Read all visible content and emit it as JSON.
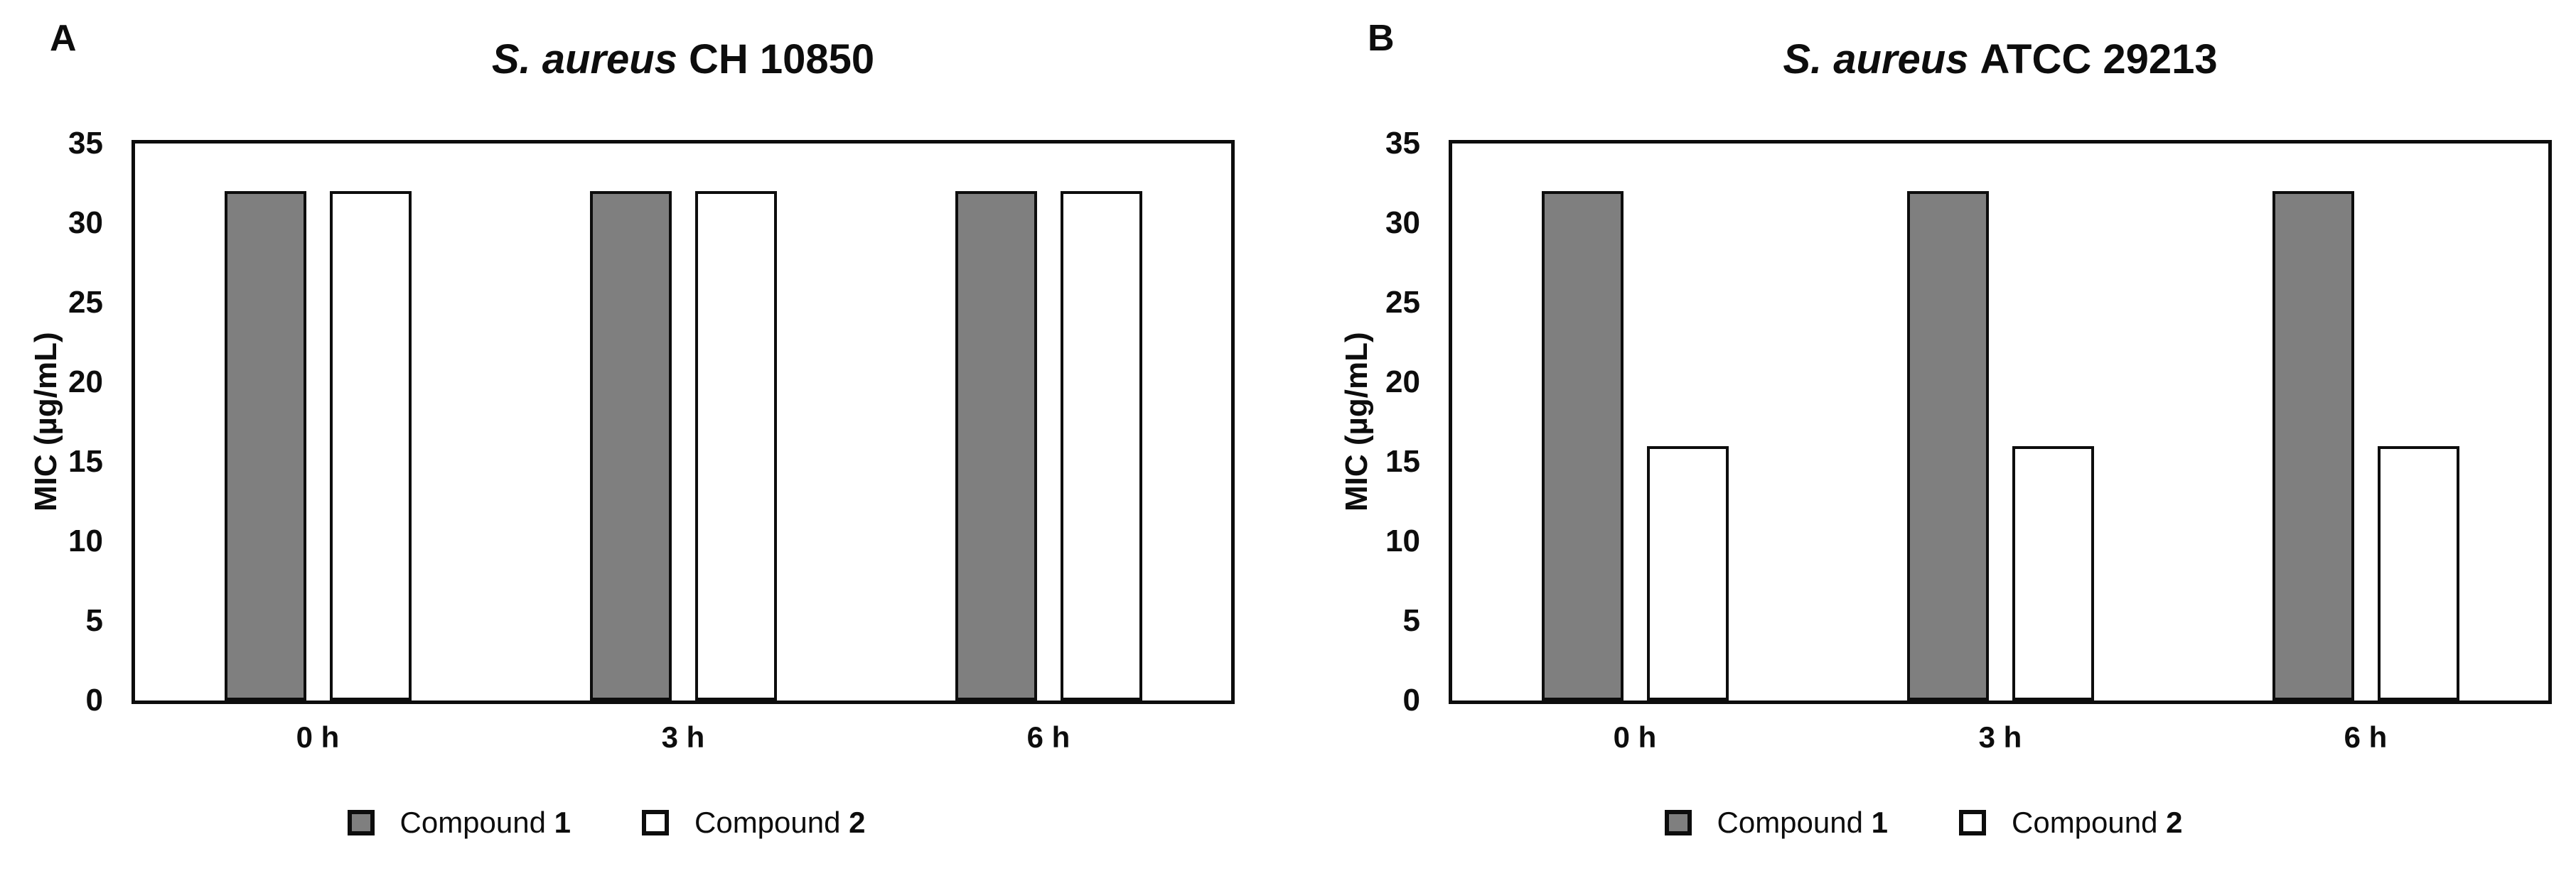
{
  "figure": {
    "background": "#ffffff",
    "axis_color": "#0d0d0d",
    "panel_count": 2
  },
  "chart_data": [
    {
      "type": "bar",
      "panel_letter": "A",
      "title": "S. aureus CH 10850",
      "title_italic_part": "S. aureus",
      "title_normal_part": "CH 10850",
      "ylabel": "MIC (µg/mL)",
      "xlabel": "",
      "ylim": [
        0,
        35
      ],
      "yticks": [
        35,
        30,
        25,
        20,
        15,
        10,
        5,
        0
      ],
      "categories": [
        "0 h",
        "3 h",
        "6 h"
      ],
      "series": [
        {
          "name": "Compound 1",
          "legend_prefix": "Compound",
          "legend_bold": "1",
          "fill": "#7f7f7f",
          "outline": "#0d0d0d",
          "values": [
            32,
            32,
            32
          ]
        },
        {
          "name": "Compound 2",
          "legend_prefix": "Compound",
          "legend_bold": "2",
          "fill": "#ffffff",
          "outline": "#0d0d0d",
          "values": [
            32,
            32,
            32
          ]
        }
      ],
      "grid": false,
      "legend_position": "bottom"
    },
    {
      "type": "bar",
      "panel_letter": "B",
      "title": "S. aureus ATCC 29213",
      "title_italic_part": "S. aureus",
      "title_normal_part": "ATCC 29213",
      "ylabel": "MIC (µg/mL)",
      "xlabel": "",
      "ylim": [
        0,
        35
      ],
      "yticks": [
        35,
        30,
        25,
        20,
        15,
        10,
        5,
        0
      ],
      "categories": [
        "0 h",
        "3 h",
        "6 h"
      ],
      "series": [
        {
          "name": "Compound 1",
          "legend_prefix": "Compound",
          "legend_bold": "1",
          "fill": "#7f7f7f",
          "outline": "#0d0d0d",
          "values": [
            32,
            32,
            32
          ]
        },
        {
          "name": "Compound 2",
          "legend_prefix": "Compound",
          "legend_bold": "2",
          "fill": "#ffffff",
          "outline": "#0d0d0d",
          "values": [
            16,
            16,
            16
          ]
        }
      ],
      "grid": false,
      "legend_position": "bottom"
    }
  ]
}
